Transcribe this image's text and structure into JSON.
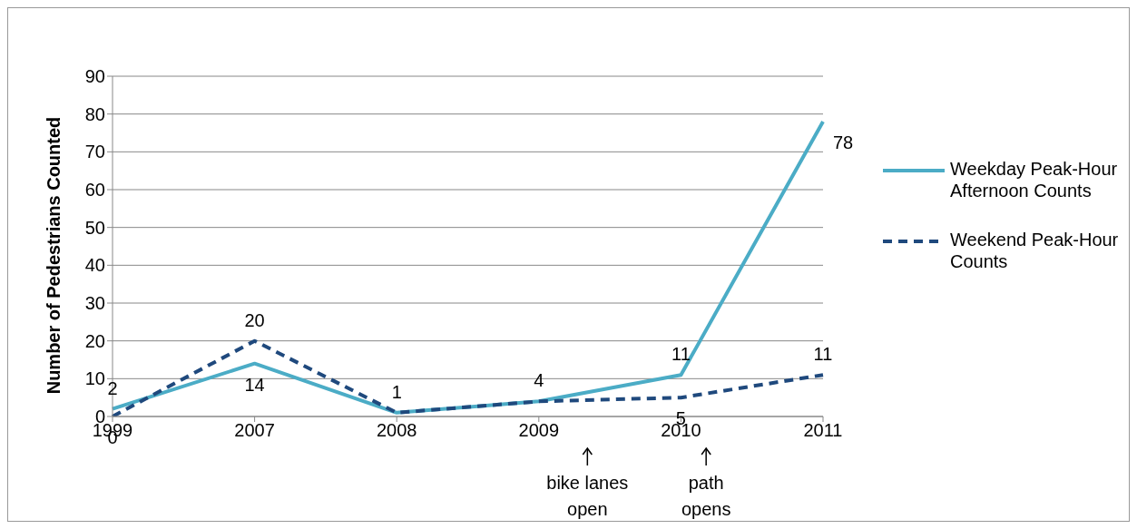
{
  "chart_data": {
    "type": "line",
    "ylabel": "Number of Pedestrians Counted",
    "categories": [
      "1999",
      "2007",
      "2008",
      "2009",
      "2010",
      "2011"
    ],
    "series": [
      {
        "name": "Weekday Peak-Hour Afternoon Counts",
        "color": "#4bacc6",
        "line_style": "solid",
        "values": [
          2,
          14,
          1,
          4,
          11,
          78
        ],
        "value_labels": [
          "2",
          "14",
          "1",
          "4",
          "11",
          "78"
        ]
      },
      {
        "name": "Weekend Peak-Hour Counts",
        "color": "#1f497d",
        "line_style": "dashed",
        "values": [
          0,
          20,
          1,
          4,
          5,
          11
        ],
        "value_labels": [
          "0",
          "20",
          null,
          null,
          "5",
          "11"
        ]
      }
    ],
    "ylim": [
      0,
      90
    ],
    "yticks": [
      0,
      10,
      20,
      30,
      40,
      50,
      60,
      70,
      80,
      90
    ],
    "grid": "y",
    "legend": "right",
    "marker": "none",
    "annotations": [
      "bike lanes open",
      "path opens"
    ]
  }
}
